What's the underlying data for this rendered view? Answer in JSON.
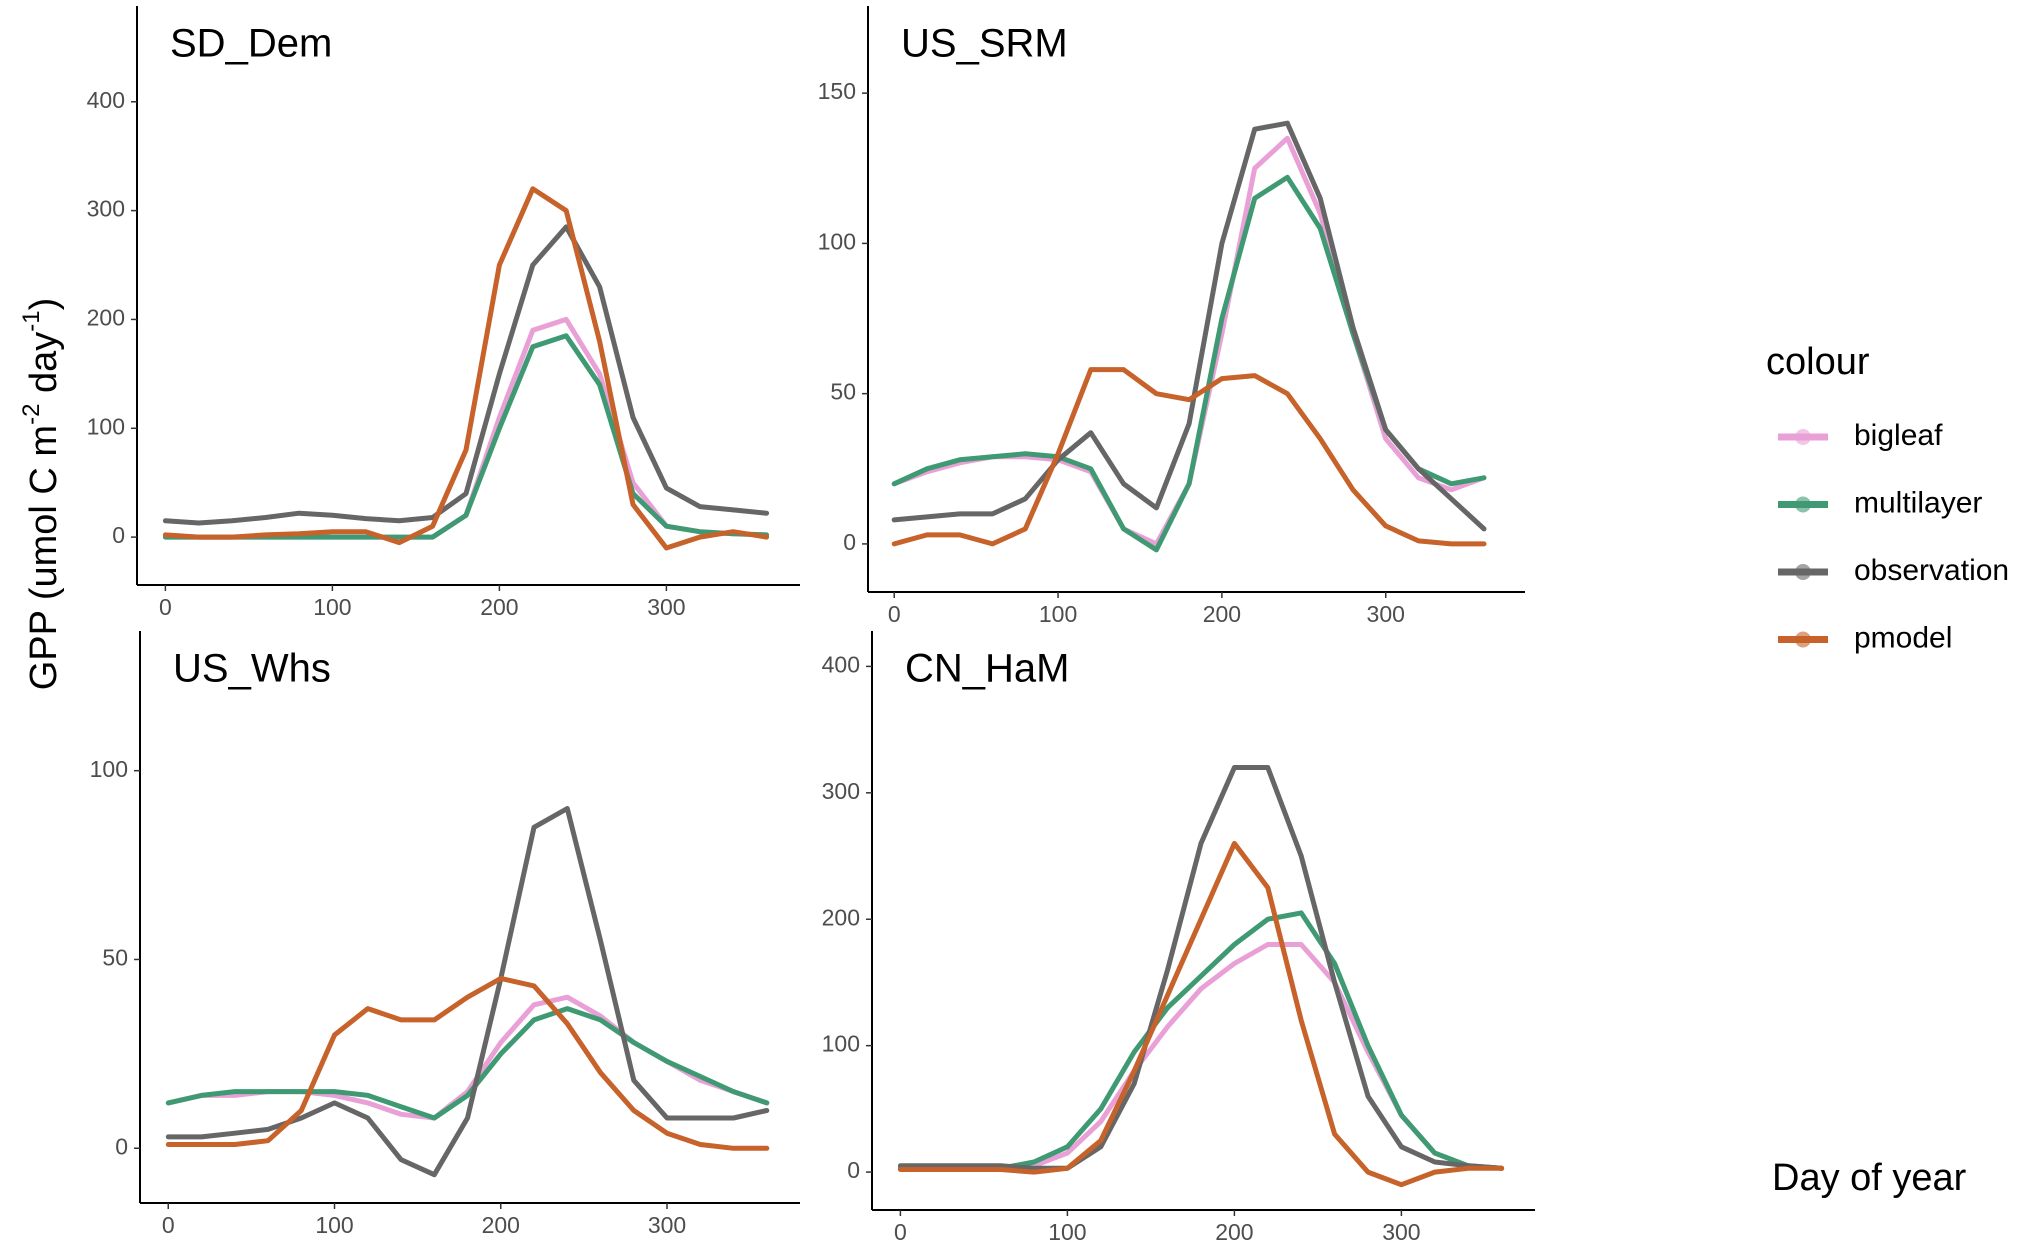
{
  "shared": {
    "ylabel": [
      "GPP (umol C m",
      "-2",
      " day",
      "-1",
      ")"
    ],
    "xlabel": "Day of year",
    "legend_title": "colour"
  },
  "chart_data": [
    {
      "type": "line",
      "title": "SD_Dem",
      "xlim": [
        -17,
        380
      ],
      "ylim": [
        -44,
        488
      ],
      "xticks": [
        0,
        100,
        200,
        300
      ],
      "yticks": [
        0,
        100,
        200,
        300,
        400
      ],
      "x": [
        0,
        20,
        40,
        60,
        80,
        100,
        120,
        140,
        160,
        180,
        200,
        220,
        240,
        260,
        280,
        300,
        320,
        340,
        360
      ],
      "series": [
        {
          "name": "bigleaf",
          "color": "#e9a0d6",
          "values": [
            0,
            0,
            0,
            0,
            0,
            0,
            0,
            0,
            0,
            20,
            110,
            190,
            200,
            150,
            50,
            10,
            5,
            3,
            2
          ]
        },
        {
          "name": "multilayer",
          "color": "#3f9a73",
          "values": [
            0,
            0,
            0,
            0,
            0,
            0,
            0,
            0,
            0,
            20,
            100,
            175,
            185,
            140,
            40,
            10,
            5,
            3,
            2
          ]
        },
        {
          "name": "observation",
          "color": "#666666",
          "values": [
            15,
            13,
            15,
            18,
            22,
            20,
            17,
            15,
            18,
            40,
            150,
            250,
            285,
            230,
            110,
            45,
            28,
            25,
            22
          ]
        },
        {
          "name": "pmodel",
          "color": "#c6622a",
          "values": [
            2,
            0,
            0,
            2,
            3,
            5,
            5,
            -5,
            10,
            80,
            250,
            320,
            300,
            180,
            30,
            -10,
            0,
            5,
            0
          ]
        }
      ]
    },
    {
      "type": "line",
      "title": "US_SRM",
      "xlim": [
        -16,
        385
      ],
      "ylim": [
        -16,
        179
      ],
      "xticks": [
        0,
        100,
        200,
        300
      ],
      "yticks": [
        0,
        50,
        100,
        150
      ],
      "x": [
        0,
        20,
        40,
        60,
        80,
        100,
        120,
        140,
        160,
        180,
        200,
        220,
        240,
        260,
        280,
        300,
        320,
        340,
        360
      ],
      "series": [
        {
          "name": "bigleaf",
          "color": "#e9a0d6",
          "values": [
            20,
            24,
            27,
            29,
            29,
            28,
            24,
            5,
            0,
            20,
            70,
            125,
            135,
            110,
            70,
            35,
            22,
            18,
            22
          ]
        },
        {
          "name": "multilayer",
          "color": "#3f9a73",
          "values": [
            20,
            25,
            28,
            29,
            30,
            29,
            25,
            5,
            -2,
            20,
            75,
            115,
            122,
            105,
            70,
            38,
            25,
            20,
            22
          ]
        },
        {
          "name": "observation",
          "color": "#666666",
          "values": [
            8,
            9,
            10,
            10,
            15,
            28,
            37,
            20,
            12,
            40,
            100,
            138,
            140,
            115,
            72,
            38,
            25,
            15,
            5
          ]
        },
        {
          "name": "pmodel",
          "color": "#c6622a",
          "values": [
            0,
            3,
            3,
            0,
            5,
            30,
            58,
            58,
            50,
            48,
            55,
            56,
            50,
            35,
            18,
            6,
            1,
            0,
            0
          ]
        }
      ]
    },
    {
      "type": "line",
      "title": "US_Whs",
      "xlim": [
        -17,
        380
      ],
      "ylim": [
        -14.5,
        137
      ],
      "xticks": [
        0,
        100,
        200,
        300
      ],
      "yticks": [
        0,
        50,
        100
      ],
      "x": [
        0,
        20,
        40,
        60,
        80,
        100,
        120,
        140,
        160,
        180,
        200,
        220,
        240,
        260,
        280,
        300,
        320,
        340,
        360
      ],
      "series": [
        {
          "name": "bigleaf",
          "color": "#e9a0d6",
          "values": [
            12,
            14,
            14,
            15,
            15,
            14,
            12,
            9,
            8,
            15,
            28,
            38,
            40,
            35,
            28,
            23,
            18,
            15,
            12
          ]
        },
        {
          "name": "multilayer",
          "color": "#3f9a73",
          "values": [
            12,
            14,
            15,
            15,
            15,
            15,
            14,
            11,
            8,
            14,
            25,
            34,
            37,
            34,
            28,
            23,
            19,
            15,
            12
          ]
        },
        {
          "name": "observation",
          "color": "#666666",
          "values": [
            3,
            3,
            4,
            5,
            8,
            12,
            8,
            -3,
            -7,
            8,
            45,
            85,
            90,
            55,
            18,
            8,
            8,
            8,
            10
          ]
        },
        {
          "name": "pmodel",
          "color": "#c6622a",
          "values": [
            1,
            1,
            1,
            2,
            10,
            30,
            37,
            34,
            34,
            40,
            45,
            43,
            33,
            20,
            10,
            4,
            1,
            0,
            0
          ]
        }
      ]
    },
    {
      "type": "line",
      "title": "CN_HaM",
      "xlim": [
        -17,
        380
      ],
      "ylim": [
        -30,
        428
      ],
      "xticks": [
        0,
        100,
        200,
        300
      ],
      "yticks": [
        0,
        100,
        200,
        300,
        400
      ],
      "x": [
        0,
        20,
        40,
        60,
        80,
        100,
        120,
        140,
        160,
        180,
        200,
        220,
        240,
        260,
        280,
        300,
        320,
        340,
        360
      ],
      "series": [
        {
          "name": "bigleaf",
          "color": "#e9a0d6",
          "values": [
            3,
            3,
            3,
            3,
            5,
            15,
            40,
            80,
            115,
            145,
            165,
            180,
            180,
            150,
            95,
            45,
            15,
            5,
            3
          ]
        },
        {
          "name": "multilayer",
          "color": "#3f9a73",
          "values": [
            3,
            3,
            3,
            3,
            8,
            20,
            50,
            95,
            130,
            155,
            180,
            200,
            205,
            165,
            100,
            45,
            15,
            5,
            3
          ]
        },
        {
          "name": "observation",
          "color": "#666666",
          "values": [
            5,
            5,
            5,
            5,
            3,
            3,
            20,
            70,
            160,
            260,
            320,
            320,
            250,
            150,
            60,
            20,
            8,
            5,
            3
          ]
        },
        {
          "name": "pmodel",
          "color": "#c6622a",
          "values": [
            2,
            2,
            2,
            2,
            0,
            3,
            25,
            80,
            140,
            200,
            260,
            225,
            120,
            30,
            0,
            -10,
            0,
            3,
            3
          ]
        }
      ]
    }
  ]
}
